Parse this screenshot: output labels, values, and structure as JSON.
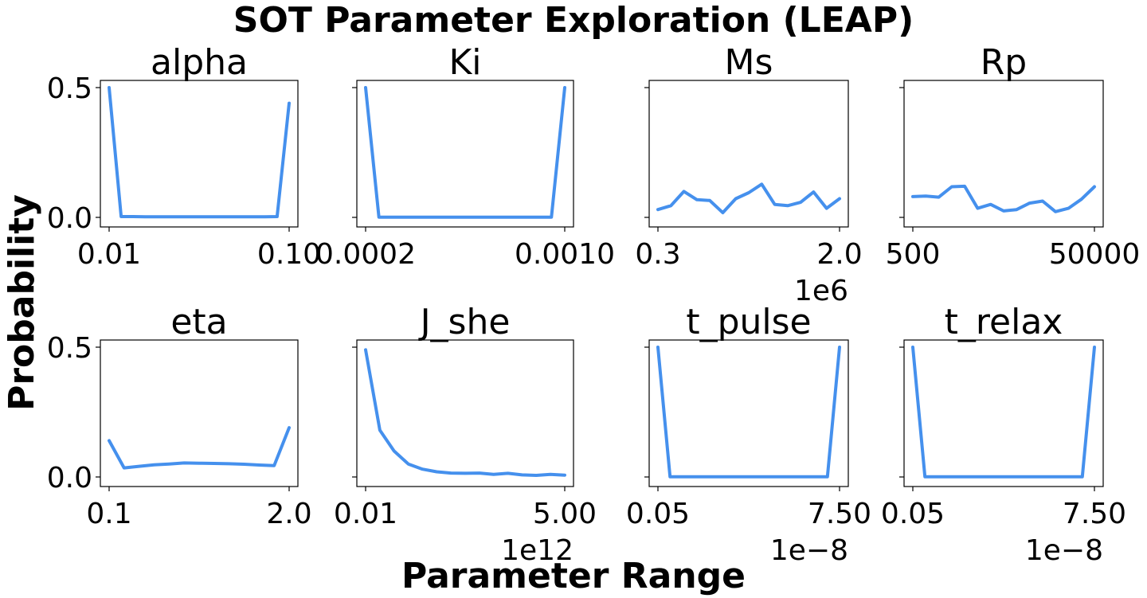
{
  "figure": {
    "suptitle": "SOT Parameter Exploration (LEAP)",
    "xlabel": "Parameter Range",
    "ylabel": "Probability"
  },
  "colors": {
    "line": "#4590ED"
  },
  "chart_data": [
    {
      "type": "line",
      "title": "alpha",
      "ylim": [
        0,
        0.5
      ],
      "y_ticks": [
        "0.0",
        "0.5"
      ],
      "x_ticks": [
        "0.01",
        "0.10"
      ],
      "x_offset": "",
      "values": [
        0.5,
        0.003,
        0.003,
        0.002,
        0.002,
        0.002,
        0.002,
        0.002,
        0.002,
        0.002,
        0.002,
        0.002,
        0.002,
        0.002,
        0.003,
        0.44
      ]
    },
    {
      "type": "line",
      "title": "Ki",
      "ylim": [
        0,
        0.5
      ],
      "y_ticks": [
        "",
        ""
      ],
      "x_ticks": [
        "0.0002",
        "0.0010"
      ],
      "x_offset": "",
      "values": [
        0.5,
        0.001,
        0.001,
        0.001,
        0.001,
        0.001,
        0.001,
        0.001,
        0.001,
        0.001,
        0.001,
        0.001,
        0.001,
        0.001,
        0.001,
        0.5
      ]
    },
    {
      "type": "line",
      "title": "Ms",
      "ylim": [
        0,
        0.5
      ],
      "y_ticks": [
        "",
        ""
      ],
      "x_ticks": [
        "0.3",
        "2.0"
      ],
      "x_offset": "1e6",
      "values": [
        0.03,
        0.045,
        0.1,
        0.068,
        0.065,
        0.018,
        0.072,
        0.095,
        0.128,
        0.05,
        0.045,
        0.058,
        0.098,
        0.035,
        0.072
      ]
    },
    {
      "type": "line",
      "title": "Rp",
      "ylim": [
        0,
        0.5
      ],
      "y_ticks": [
        "",
        ""
      ],
      "x_ticks": [
        "500",
        "50000"
      ],
      "x_offset": "",
      "values": [
        0.08,
        0.082,
        0.078,
        0.118,
        0.12,
        0.035,
        0.05,
        0.025,
        0.03,
        0.055,
        0.063,
        0.022,
        0.035,
        0.07,
        0.118
      ]
    },
    {
      "type": "line",
      "title": "eta",
      "ylim": [
        0,
        0.5
      ],
      "y_ticks": [
        "0.0",
        "0.5"
      ],
      "x_ticks": [
        "0.1",
        "2.0"
      ],
      "x_offset": "",
      "values": [
        0.14,
        0.035,
        0.041,
        0.047,
        0.05,
        0.054,
        0.053,
        0.052,
        0.051,
        0.049,
        0.046,
        0.044,
        0.19
      ]
    },
    {
      "type": "line",
      "title": "J_she",
      "ylim": [
        0,
        0.5
      ],
      "y_ticks": [
        "",
        ""
      ],
      "x_ticks": [
        "0.01",
        "5.00"
      ],
      "x_offset": "1e12",
      "values": [
        0.49,
        0.18,
        0.1,
        0.05,
        0.03,
        0.02,
        0.015,
        0.014,
        0.015,
        0.01,
        0.014,
        0.008,
        0.006,
        0.01,
        0.007
      ]
    },
    {
      "type": "line",
      "title": "t_pulse",
      "ylim": [
        0,
        0.5
      ],
      "y_ticks": [
        "",
        ""
      ],
      "x_ticks": [
        "0.05",
        "7.50"
      ],
      "x_offset": "1e−8",
      "values": [
        0.5,
        0.001,
        0.001,
        0.001,
        0.001,
        0.001,
        0.001,
        0.001,
        0.001,
        0.001,
        0.001,
        0.001,
        0.001,
        0.001,
        0.001,
        0.5
      ]
    },
    {
      "type": "line",
      "title": "t_relax",
      "ylim": [
        0,
        0.5
      ],
      "y_ticks": [
        "",
        ""
      ],
      "x_ticks": [
        "0.05",
        "7.50"
      ],
      "x_offset": "1e−8",
      "values": [
        0.5,
        0.001,
        0.001,
        0.001,
        0.001,
        0.001,
        0.001,
        0.001,
        0.001,
        0.001,
        0.001,
        0.001,
        0.001,
        0.001,
        0.001,
        0.5
      ]
    }
  ]
}
